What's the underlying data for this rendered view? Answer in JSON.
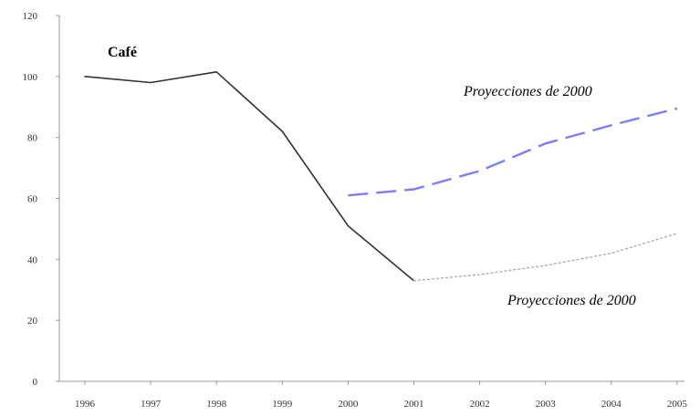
{
  "chart_data": {
    "type": "line",
    "title": "Café",
    "x": [
      "1996",
      "1997",
      "1998",
      "1999",
      "2000",
      "2001",
      "2002",
      "2003",
      "2004",
      "2005"
    ],
    "ylim": [
      0,
      120
    ],
    "yticks": [
      0,
      20,
      40,
      60,
      80,
      100,
      120
    ],
    "grid": false,
    "series": [
      {
        "style": "solid",
        "color": "#333333",
        "points": [
          {
            "x": "1996",
            "y": 100
          },
          {
            "x": "1997",
            "y": 98
          },
          {
            "x": "1998",
            "y": 101.5
          },
          {
            "x": "1999",
            "y": 82
          },
          {
            "x": "2000",
            "y": 51
          },
          {
            "x": "2001",
            "y": 33
          }
        ]
      },
      {
        "style": "dashed",
        "color": "#7d7df5",
        "points": [
          {
            "x": "2000",
            "y": 61
          },
          {
            "x": "2001",
            "y": 63
          },
          {
            "x": "2002",
            "y": 69
          },
          {
            "x": "2003",
            "y": 78
          },
          {
            "x": "2004",
            "y": 84
          },
          {
            "x": "2005",
            "y": 89.5
          }
        ]
      },
      {
        "style": "dotted",
        "color": "#b0b0b0",
        "points": [
          {
            "x": "2001",
            "y": 33
          },
          {
            "x": "2002",
            "y": 35
          },
          {
            "x": "2003",
            "y": 38
          },
          {
            "x": "2004",
            "y": 42
          },
          {
            "x": "2005",
            "y": 48.5
          }
        ]
      }
    ],
    "annotations": [
      {
        "text": "Proyecciones de 2000",
        "near": "upper projection",
        "style": "italic"
      },
      {
        "text": "Proyecciones de 2000",
        "near": "lower projection",
        "style": "italic"
      }
    ]
  }
}
